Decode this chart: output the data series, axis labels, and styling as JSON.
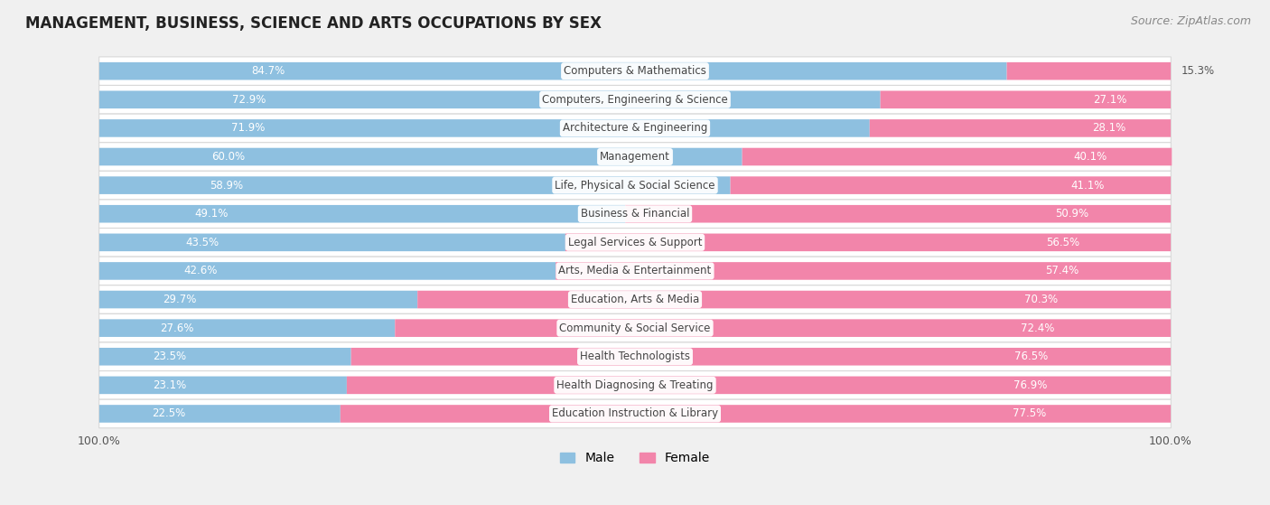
{
  "title": "MANAGEMENT, BUSINESS, SCIENCE AND ARTS OCCUPATIONS BY SEX",
  "source": "Source: ZipAtlas.com",
  "categories": [
    "Computers & Mathematics",
    "Computers, Engineering & Science",
    "Architecture & Engineering",
    "Management",
    "Life, Physical & Social Science",
    "Business & Financial",
    "Legal Services & Support",
    "Arts, Media & Entertainment",
    "Education, Arts & Media",
    "Community & Social Service",
    "Health Technologists",
    "Health Diagnosing & Treating",
    "Education Instruction & Library"
  ],
  "male": [
    84.7,
    72.9,
    71.9,
    60.0,
    58.9,
    49.1,
    43.5,
    42.6,
    29.7,
    27.6,
    23.5,
    23.1,
    22.5
  ],
  "female": [
    15.3,
    27.1,
    28.1,
    40.1,
    41.1,
    50.9,
    56.5,
    57.4,
    70.3,
    72.4,
    76.5,
    76.9,
    77.5
  ],
  "male_color": "#8ec0e0",
  "female_color": "#f285aa",
  "background_color": "#f0f0f0",
  "row_bg_color": "#ffffff",
  "row_edge_color": "#d8d8d8",
  "title_fontsize": 12,
  "cat_fontsize": 8.5,
  "bar_label_fontsize": 8.5,
  "legend_fontsize": 10,
  "source_fontsize": 9
}
